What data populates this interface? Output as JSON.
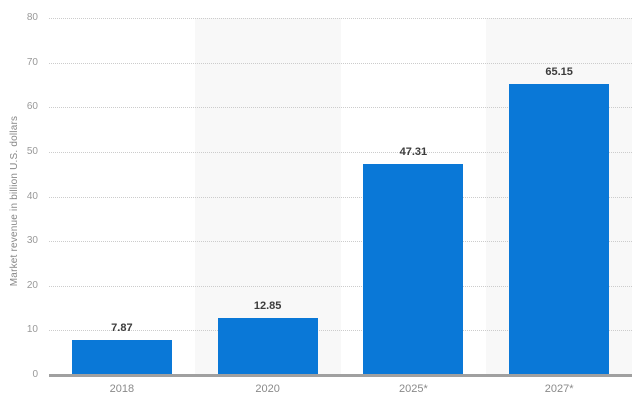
{
  "chart_data": {
    "type": "bar",
    "title": "",
    "categories": [
      "2018",
      "2020",
      "2025*",
      "2027*"
    ],
    "values": [
      7.87,
      12.85,
      47.31,
      65.15
    ],
    "value_labels": [
      "7.87",
      "12.85",
      "47.31",
      "65.15"
    ],
    "ylabel": "Market revenue in billion U.S. dollars",
    "xlabel": "",
    "ylim": [
      0,
      80
    ],
    "yticks": [
      0,
      10,
      20,
      30,
      40,
      50,
      60,
      70,
      80
    ],
    "grid": "horizontal-dotted",
    "legend": null,
    "column_bands": "alternating white and light gray",
    "colors": {
      "bar": "#0a78d7",
      "band_alt": "#f8f8f8",
      "gridline": "#cccccc",
      "axis_line": "#a0a0a0",
      "tick_text": "#999999",
      "category_text": "#8a8a8a",
      "value_label_text": "#3c3c3c",
      "background": "#ffffff"
    }
  }
}
